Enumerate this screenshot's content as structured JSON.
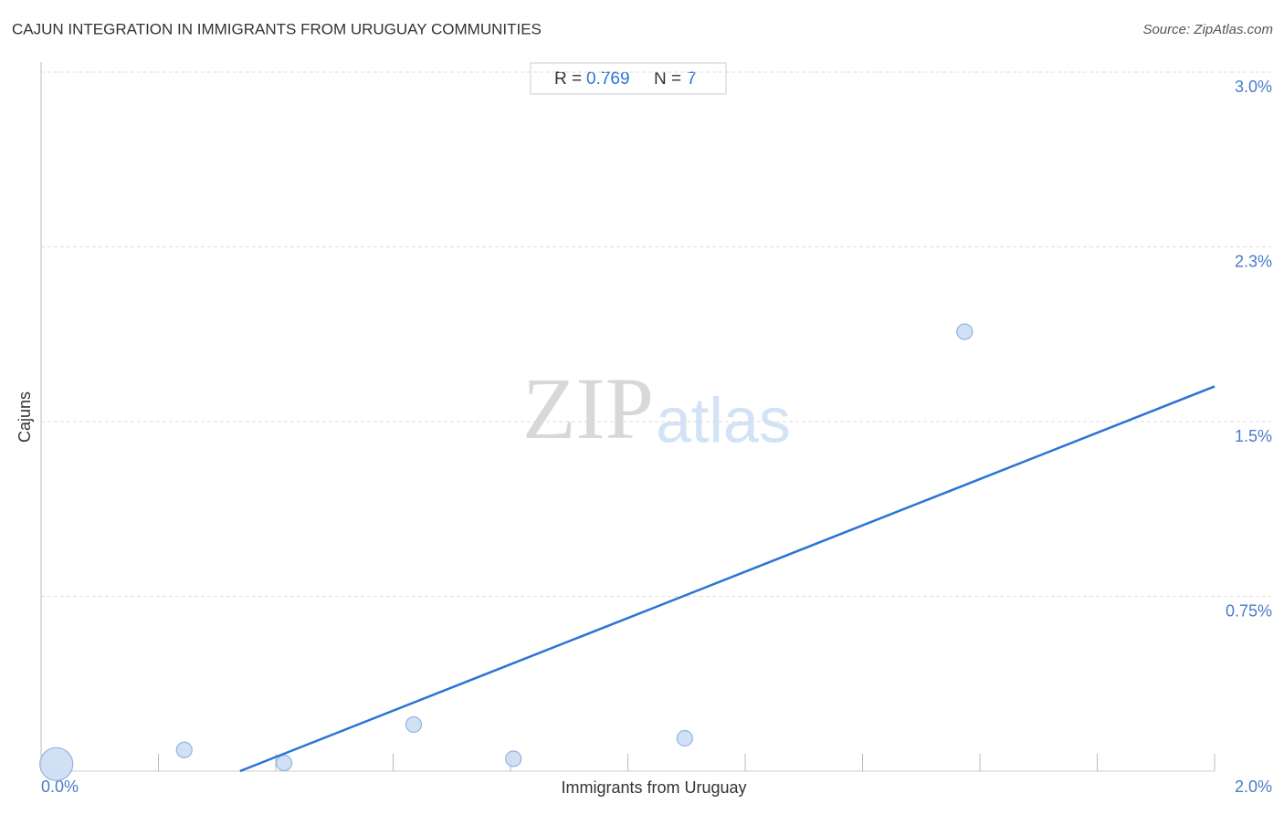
{
  "chart_data": {
    "type": "scatter",
    "title": "CAJUN INTEGRATION IN IMMIGRANTS FROM URUGUAY COMMUNITIES",
    "source": "Source: ZipAtlas.com",
    "x_label": "Immigrants from Uruguay",
    "y_label": "Cajuns",
    "watermark": [
      "ZIP",
      "atlas"
    ],
    "stats": {
      "r_label": "R =",
      "r": 0.769,
      "n_label": "N =",
      "n": 7
    },
    "x": [
      0.026,
      0.244,
      0.414,
      0.635,
      0.805,
      1.097,
      1.574
    ],
    "values": [
      0.03,
      0.091,
      0.035,
      0.2,
      0.053,
      0.141,
      1.886
    ],
    "sizes": [
      4.5,
      1,
      1,
      1,
      1,
      1,
      1
    ],
    "color": "#c9dcf3",
    "edge_color": "#8fb5e3",
    "trend_line": {
      "x": [
        0.339,
        2.0
      ],
      "y": [
        0,
        1.651
      ],
      "color": "#2a74d4"
    },
    "xlim": [
      0,
      2.0
    ],
    "ylim": [
      0,
      3.0
    ],
    "xticks": [
      {
        "value": 0,
        "label": "0.0%"
      },
      {
        "value": 2.0,
        "label": "2.0%"
      }
    ],
    "xminor_ticks": [
      0.2,
      0.4,
      0.6,
      0.8,
      1.0,
      1.2,
      1.4,
      1.6,
      1.8,
      2.0
    ],
    "yticks": [
      {
        "value": 0.75,
        "label": "0.75%"
      },
      {
        "value": 1.5,
        "label": "1.5%"
      },
      {
        "value": 2.25,
        "label": "2.3%"
      },
      {
        "value": 3.0,
        "label": "3.0%"
      }
    ],
    "grid": true
  }
}
